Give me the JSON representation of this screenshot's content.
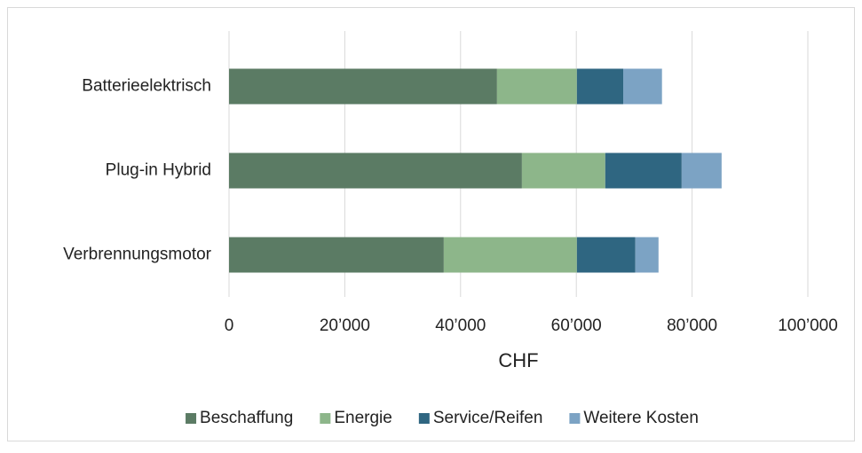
{
  "chart_data": {
    "type": "stacked-bar-horizontal",
    "x_label": "CHF",
    "categories": [
      "Batterieelektrisch",
      "Plug-in Hybrid",
      "Verbrennungsmotor"
    ],
    "series": [
      {
        "name": "Beschaffung",
        "color": "#5b7b64",
        "values": [
          46300,
          50600,
          37100
        ]
      },
      {
        "name": "Energie",
        "color": "#8db68a",
        "values": [
          13800,
          14400,
          23000
        ]
      },
      {
        "name": "Service/Reifen",
        "color": "#2f6681",
        "values": [
          8000,
          13200,
          10100
        ]
      },
      {
        "name": "Weitere Kosten",
        "color": "#7ca3c4",
        "values": [
          6700,
          6900,
          4000
        ]
      }
    ],
    "xlim": [
      0,
      100000
    ],
    "xticks": [
      0,
      {
        "value": 20000,
        "label": "20’000"
      },
      {
        "value": 40000,
        "label": "40’000"
      },
      {
        "value": 60000,
        "label": "60’000"
      },
      {
        "value": 80000,
        "label": "80’000"
      },
      {
        "value": 100000,
        "label": "100’000"
      }
    ],
    "grid": true,
    "legend": "bottom"
  }
}
